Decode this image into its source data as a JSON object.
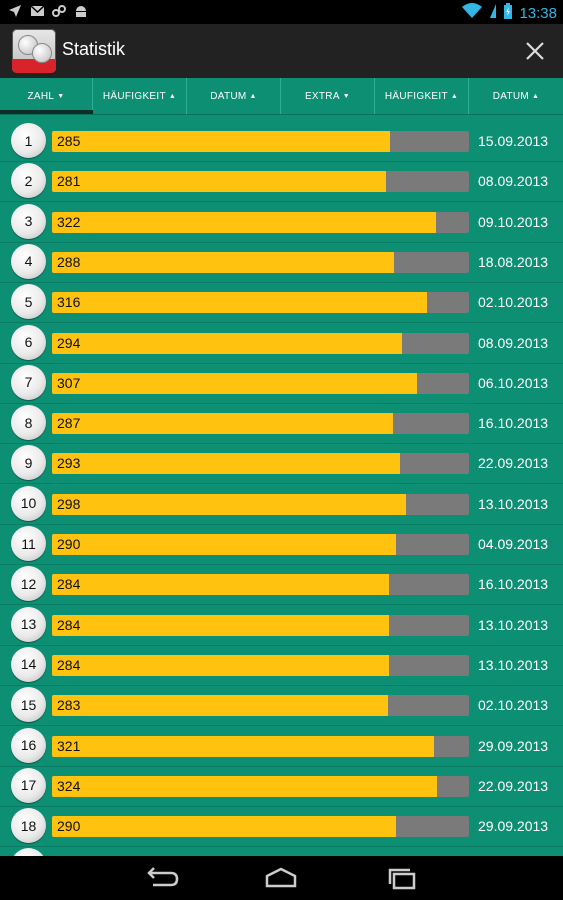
{
  "status_bar": {
    "time": "13:38",
    "left_icons": [
      "navigation-icon",
      "mail-icon",
      "sync-icon",
      "android-icon"
    ],
    "right_icons": [
      "wifi-icon",
      "battery-icon"
    ],
    "accent": "#33b5e5"
  },
  "action_bar": {
    "title": "Statistik"
  },
  "tabs": [
    {
      "label": "ZAHL",
      "arrow": "▼",
      "active": true
    },
    {
      "label": "HÄUFIGKEIT",
      "arrow": "▲",
      "active": false
    },
    {
      "label": "DATUM",
      "arrow": "▲",
      "active": false
    },
    {
      "label": "EXTRA",
      "arrow": "▼",
      "active": false
    },
    {
      "label": "HÄUFIGKEIT",
      "arrow": "▲",
      "active": false
    },
    {
      "label": "DATUM",
      "arrow": "▲",
      "active": false
    }
  ],
  "colors": {
    "background": "#0d8f74",
    "bar_fill": "#ffc20e",
    "bar_track": "#7a7a7a"
  },
  "rows": [
    {
      "number": "1",
      "frequency": "285",
      "date": "15.09.2013",
      "fill_fraction": 0.81
    },
    {
      "number": "2",
      "frequency": "281",
      "date": "08.09.2013",
      "fill_fraction": 0.8
    },
    {
      "number": "3",
      "frequency": "322",
      "date": "09.10.2013",
      "fill_fraction": 0.92
    },
    {
      "number": "4",
      "frequency": "288",
      "date": "18.08.2013",
      "fill_fraction": 0.82
    },
    {
      "number": "5",
      "frequency": "316",
      "date": "02.10.2013",
      "fill_fraction": 0.9
    },
    {
      "number": "6",
      "frequency": "294",
      "date": "08.09.2013",
      "fill_fraction": 0.84
    },
    {
      "number": "7",
      "frequency": "307",
      "date": "06.10.2013",
      "fill_fraction": 0.875
    },
    {
      "number": "8",
      "frequency": "287",
      "date": "16.10.2013",
      "fill_fraction": 0.818
    },
    {
      "number": "9",
      "frequency": "293",
      "date": "22.09.2013",
      "fill_fraction": 0.835
    },
    {
      "number": "10",
      "frequency": "298",
      "date": "13.10.2013",
      "fill_fraction": 0.85
    },
    {
      "number": "11",
      "frequency": "290",
      "date": "04.09.2013",
      "fill_fraction": 0.826
    },
    {
      "number": "12",
      "frequency": "284",
      "date": "16.10.2013",
      "fill_fraction": 0.809
    },
    {
      "number": "13",
      "frequency": "284",
      "date": "13.10.2013",
      "fill_fraction": 0.809
    },
    {
      "number": "14",
      "frequency": "284",
      "date": "13.10.2013",
      "fill_fraction": 0.809
    },
    {
      "number": "15",
      "frequency": "283",
      "date": "02.10.2013",
      "fill_fraction": 0.806
    },
    {
      "number": "16",
      "frequency": "321",
      "date": "29.09.2013",
      "fill_fraction": 0.915
    },
    {
      "number": "17",
      "frequency": "324",
      "date": "22.09.2013",
      "fill_fraction": 0.923
    },
    {
      "number": "18",
      "frequency": "290",
      "date": "29.09.2013",
      "fill_fraction": 0.826
    }
  ],
  "nav_bar": {
    "buttons": [
      "back-icon",
      "home-icon",
      "recent-apps-icon"
    ]
  }
}
